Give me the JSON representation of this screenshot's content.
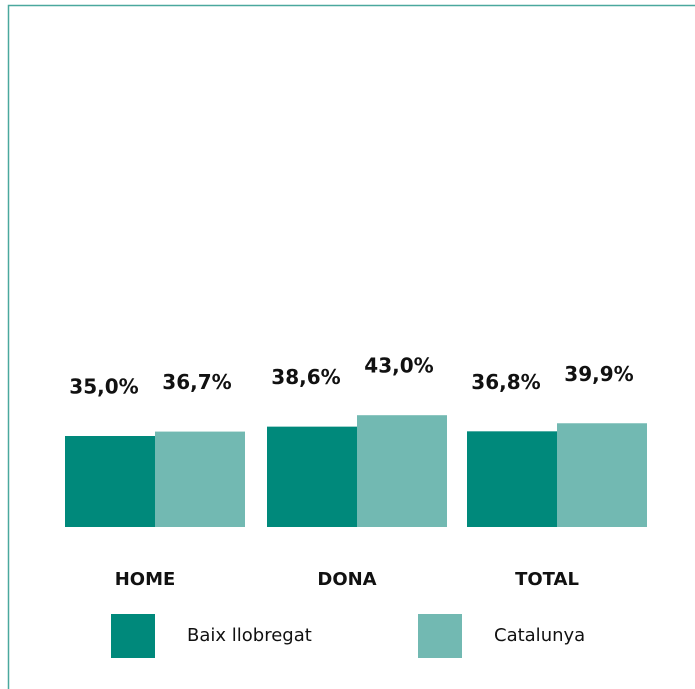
{
  "chart_data": {
    "type": "bar",
    "categories": [
      "HOME",
      "DONA",
      "TOTAL"
    ],
    "series": [
      {
        "name": "Baix llobregat",
        "color": "#00897b",
        "values": [
          35.0,
          38.6,
          36.8
        ],
        "value_labels": [
          "35,0%",
          "38,6%",
          "36,8%"
        ]
      },
      {
        "name": "Catalunya",
        "color": "#72b9b2",
        "values": [
          36.7,
          43.0,
          39.9
        ],
        "value_labels": [
          "36,7%",
          "43,0%",
          "39,9%"
        ]
      }
    ],
    "ylim": [
      0,
      100
    ]
  }
}
